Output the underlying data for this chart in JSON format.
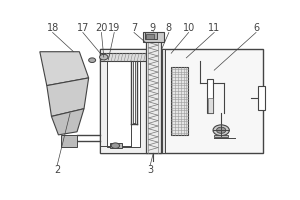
{
  "lc": "#444444",
  "bg": "#ffffff",
  "label_fs": 7,
  "gray_light": "#e8e8e8",
  "gray_med": "#cccccc",
  "gray_dark": "#aaaaaa",
  "labels_top": [
    [
      "18",
      0.065
    ],
    [
      "17",
      0.195
    ],
    [
      "20",
      0.275
    ],
    [
      "19",
      0.33
    ],
    [
      "7",
      0.415
    ],
    [
      "9",
      0.495
    ],
    [
      "8",
      0.565
    ],
    [
      "10",
      0.65
    ],
    [
      "11",
      0.76
    ],
    [
      "6",
      0.94
    ]
  ],
  "label_2": [
    0.085,
    0.055
  ],
  "label_3": [
    0.485,
    0.055
  ]
}
